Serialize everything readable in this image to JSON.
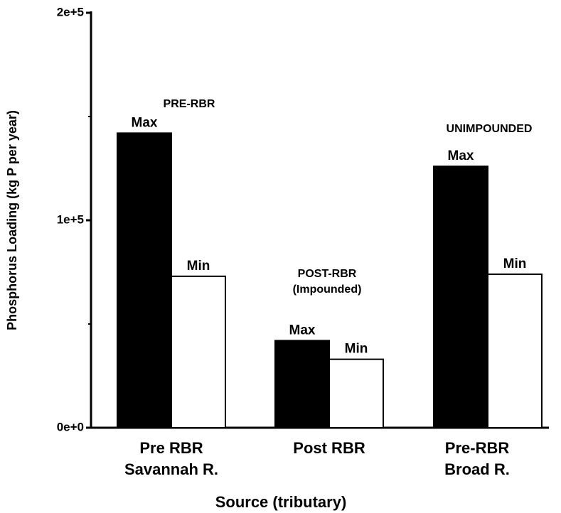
{
  "chart_data": {
    "type": "bar",
    "y_label": "Phosphorus Loading (kg P per year)",
    "x_label": "Source (tributary)",
    "categories": [
      [
        "Pre RBR",
        "Savannah R."
      ],
      [
        "Post RBR"
      ],
      [
        "Pre-RBR",
        "Broad R."
      ]
    ],
    "series": [
      {
        "name": "Max",
        "color": "#000000",
        "values": [
          142000,
          42000,
          126000
        ]
      },
      {
        "name": "Min",
        "color": "#ffffff",
        "values": [
          73000,
          33000,
          74000
        ]
      }
    ],
    "annotations": [
      "PRE-RBR",
      "POST-RBR",
      "(Impounded)",
      "UNIMPOUNDED"
    ],
    "ylim": [
      0,
      200000
    ],
    "yticks": [
      {
        "value": 0,
        "label": "0e+0"
      },
      {
        "value": 100000,
        "label": "1e+5"
      },
      {
        "value": 200000,
        "label": "2e+5"
      }
    ],
    "yminor_ticks": [
      50000,
      150000
    ],
    "grid": false
  }
}
